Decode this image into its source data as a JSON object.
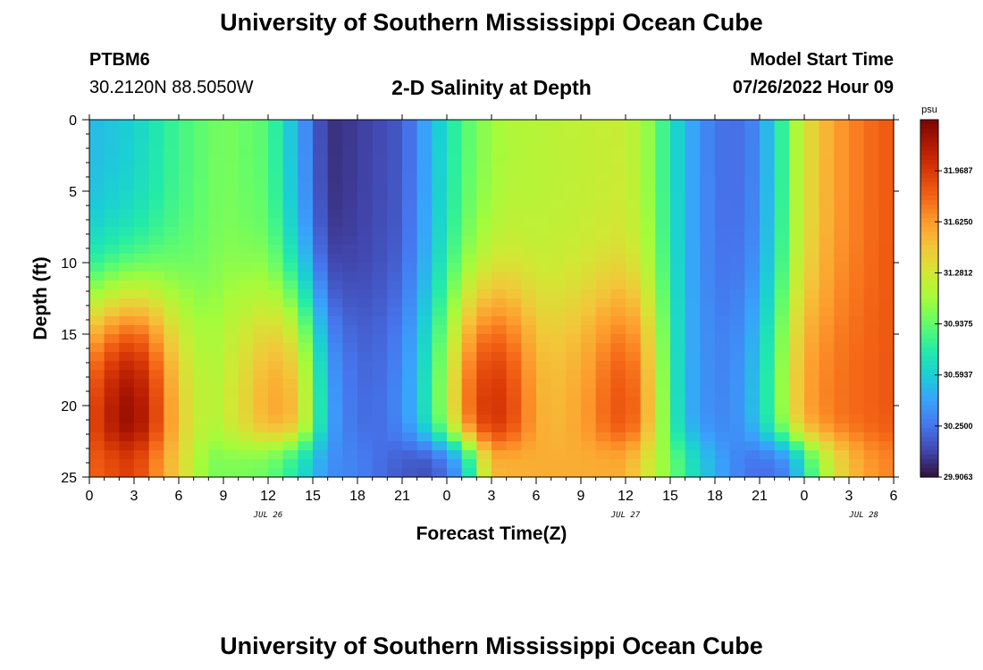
{
  "page": {
    "title": "University of Southern Mississippi Ocean Cube",
    "station": "PTBM6",
    "coords": "30.2120N  88.5050W",
    "subtitle": "2-D Salinity at Depth",
    "model_start_label": "Model Start Time",
    "model_start_value": "07/26/2022 Hour 09",
    "footer_title": "University of Southern Mississippi Ocean Cube"
  },
  "chart_data": {
    "type": "heatmap",
    "title": "2-D Salinity at Depth",
    "xlabel": "Forecast Time(Z)",
    "ylabel": "Depth (ft)",
    "x_ticks": [
      "0",
      "3",
      "6",
      "9",
      "12",
      "15",
      "18",
      "21",
      "0",
      "3",
      "6",
      "9",
      "12",
      "15",
      "18",
      "21",
      "0",
      "3",
      "6"
    ],
    "x_tick_hours": [
      0,
      3,
      6,
      9,
      12,
      15,
      18,
      21,
      24,
      27,
      30,
      33,
      36,
      39,
      42,
      45,
      48,
      51,
      54
    ],
    "date_labels": [
      {
        "label": "JUL 26",
        "hour": 12
      },
      {
        "label": "JUL 27",
        "hour": 36
      },
      {
        "label": "JUL 28",
        "hour": 52
      }
    ],
    "xlim": [
      0,
      54
    ],
    "y_ticks": [
      "0",
      "5",
      "10",
      "15",
      "20",
      "25"
    ],
    "y_tick_values": [
      0,
      5,
      10,
      15,
      20,
      25
    ],
    "ylim": [
      0,
      25
    ],
    "y_inverted": true,
    "colorbar": {
      "unit": "psu",
      "range": [
        29.9063,
        32.3125
      ],
      "tick_labels": [
        "31.9687",
        "31.6250",
        "31.2812",
        "30.9375",
        "30.5937",
        "30.2500",
        "29.9063"
      ],
      "tick_values": [
        31.9687,
        31.625,
        31.2812,
        30.9375,
        30.5937,
        30.25,
        29.9063
      ]
    },
    "colormap": [
      "#30123b",
      "#4145ab",
      "#4675ed",
      "#39a2fc",
      "#1bcfd4",
      "#24eca6",
      "#61fc6c",
      "#a4fc3b",
      "#d1e834",
      "#f3c63a",
      "#fe9b2d",
      "#f36315",
      "#d93806",
      "#b11901",
      "#7a0402"
    ],
    "grid_hours_step": 1,
    "grid_depth_step": 0.625,
    "salinity_samples_note": "",
    "features": [
      {
        "kind": "high",
        "hour": 2,
        "depth": 22,
        "value": 32.2
      },
      {
        "kind": "high",
        "hour": 13,
        "depth": 20,
        "value": 31.6
      },
      {
        "kind": "high",
        "hour": 27,
        "depth": 20,
        "value": 32.0
      },
      {
        "kind": "high",
        "hour": 36,
        "depth": 20,
        "value": 31.9
      },
      {
        "kind": "high",
        "hour": 53,
        "depth": 10,
        "value": 32.0
      },
      {
        "kind": "low",
        "hour": 17,
        "depth": 1,
        "value": 29.95
      },
      {
        "kind": "low",
        "hour": 44,
        "depth": 2,
        "value": 30.2
      },
      {
        "kind": "low",
        "hour": 1,
        "depth": 5,
        "value": 30.3
      },
      {
        "kind": "low",
        "hour": 23,
        "depth": 25,
        "value": 30.1
      },
      {
        "kind": "low",
        "hour": 47,
        "depth": 25,
        "value": 30.2
      }
    ]
  }
}
